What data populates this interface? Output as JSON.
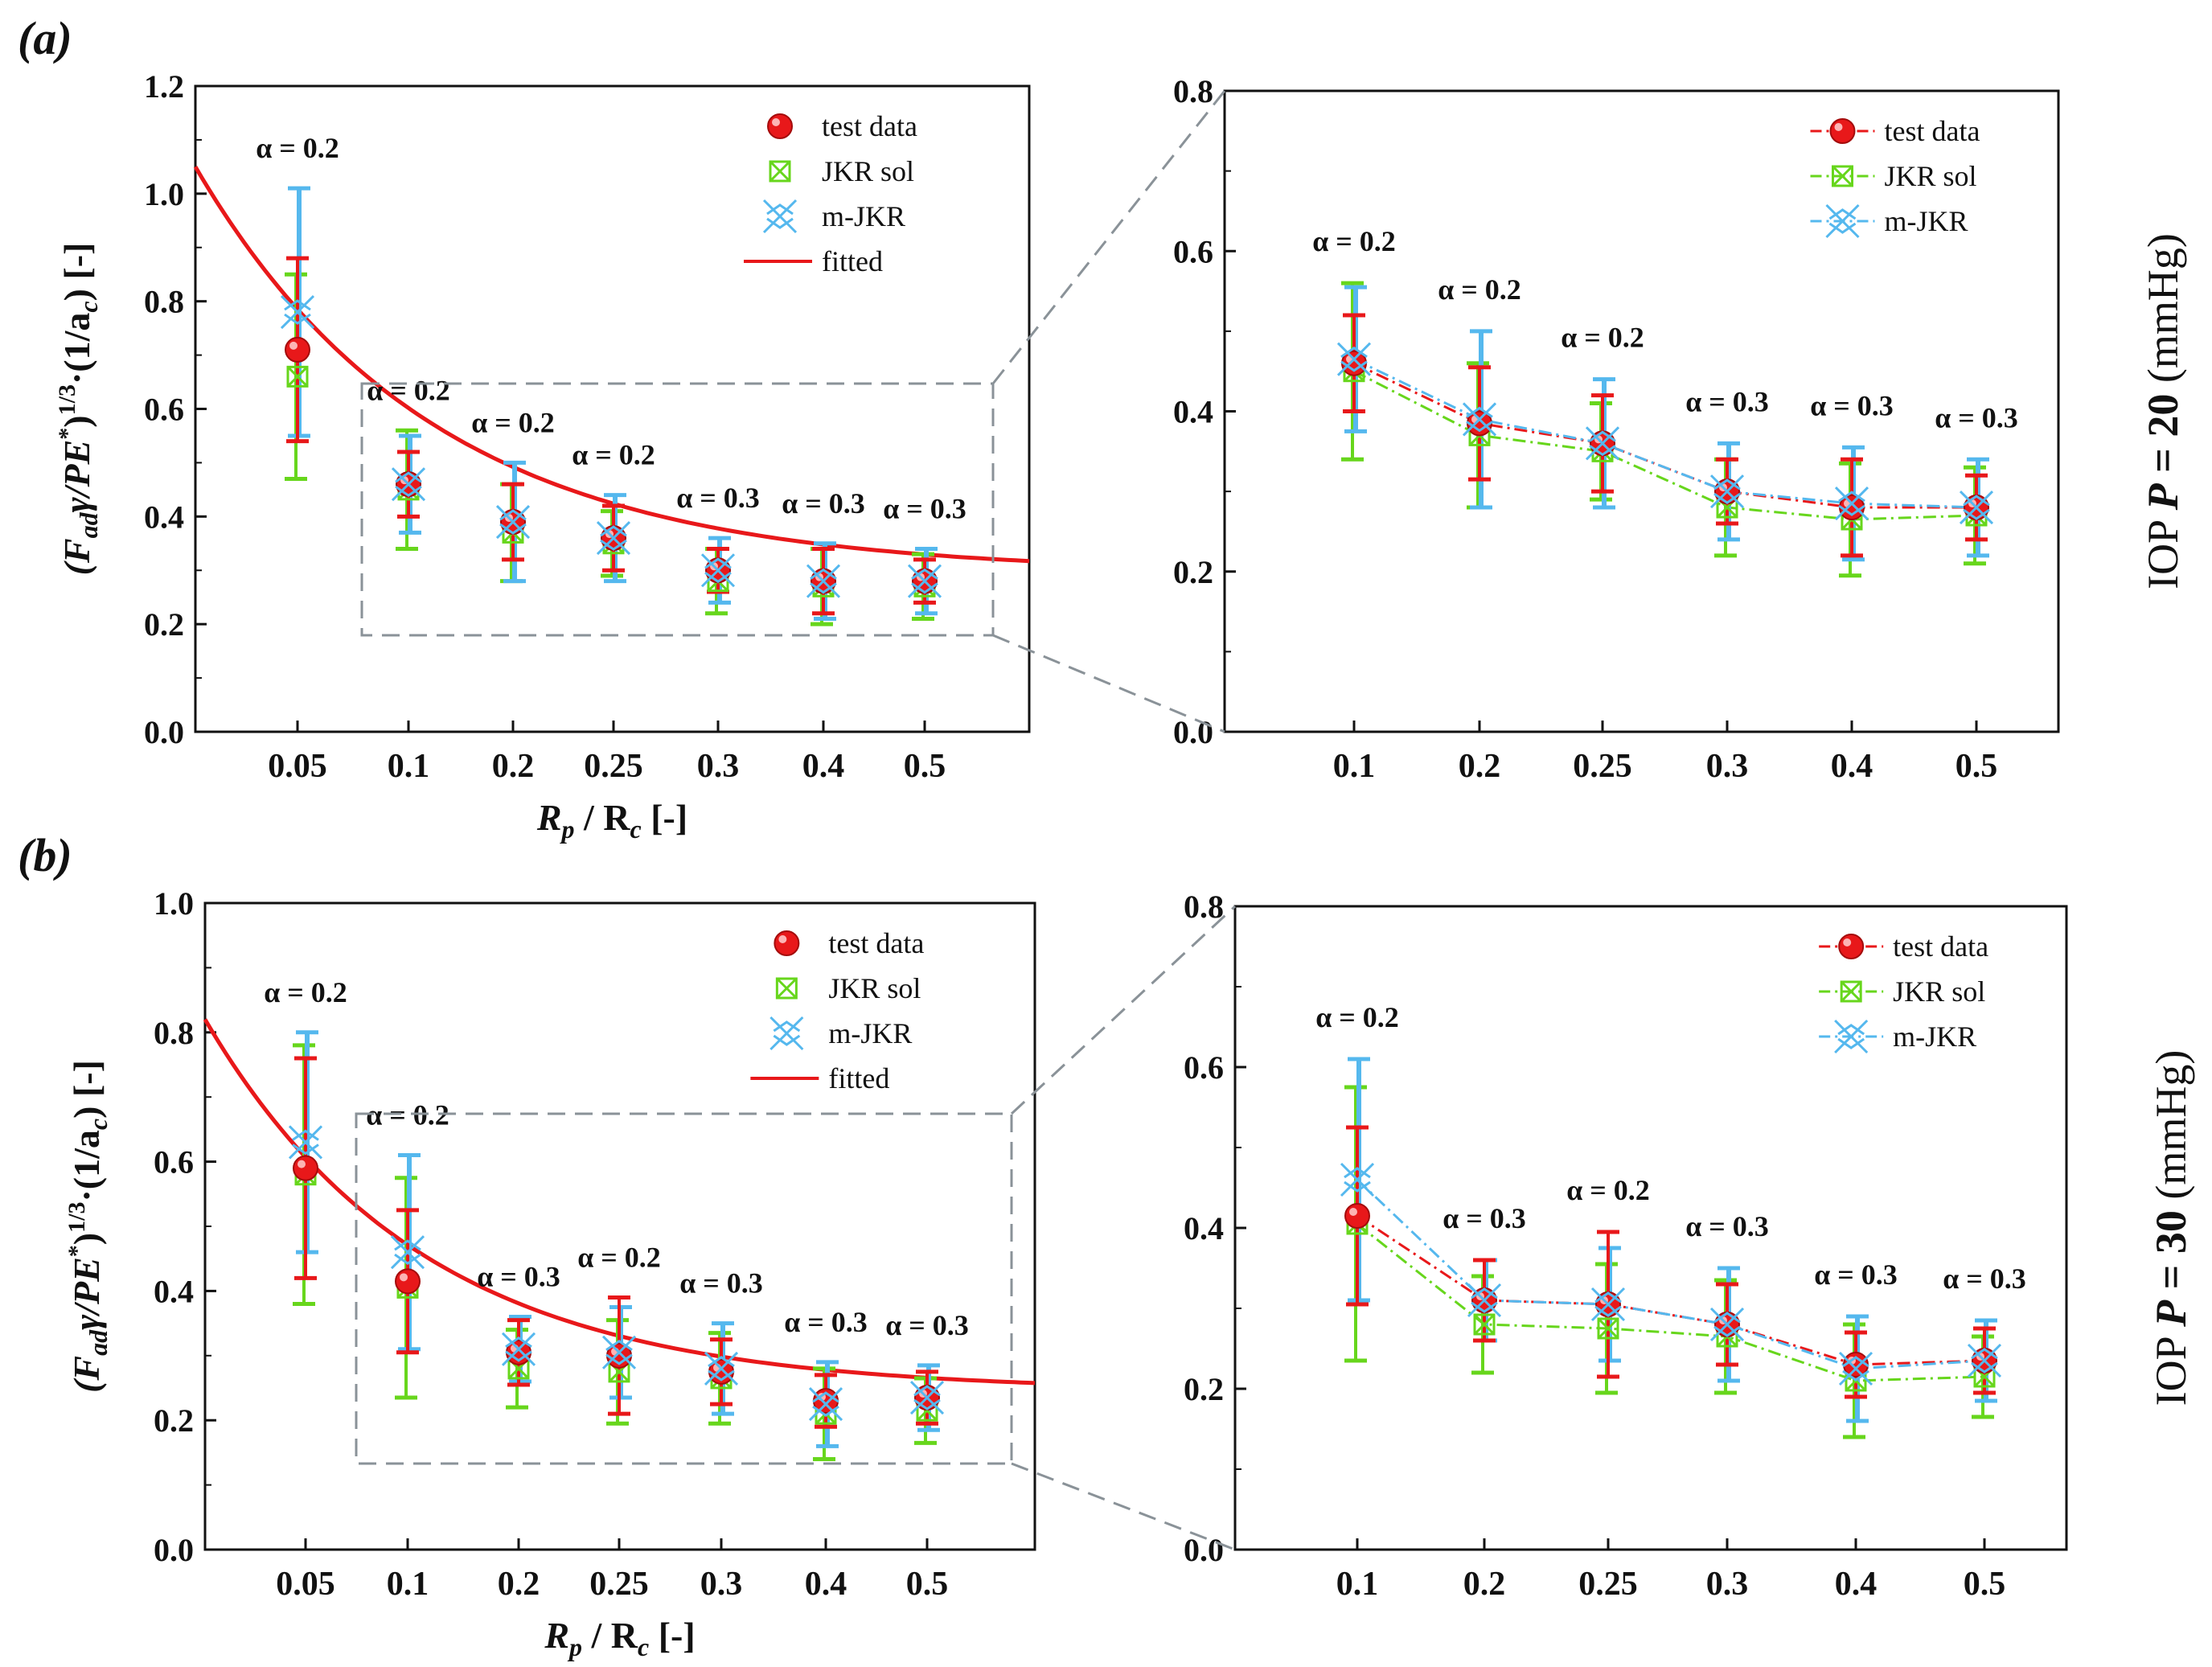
{
  "chart_data": [
    {
      "id": "a-main",
      "panel_label": "(a)",
      "type": "scatter",
      "title": "",
      "ylabel": "(F_ad γ/PE*)^1/3·(1/a_c) [-]",
      "ylabel_parts": [
        "(F",
        "ad",
        "γ/PE",
        "*",
        ")",
        "1/3",
        "·(1/a",
        "c",
        ") [-]"
      ],
      "xlabel_parts": [
        "R",
        "p",
        " / R",
        "c",
        " [-]"
      ],
      "categories": [
        "0.05",
        "0.1",
        "0.2",
        "0.25",
        "0.3",
        "0.4",
        "0.5"
      ],
      "ylim": [
        0,
        1.2
      ],
      "yticks": [
        "0.0",
        "0.2",
        "0.4",
        "0.6",
        "0.8",
        "1.0",
        "1.2"
      ],
      "annotations": [
        "α = 0.2",
        "α = 0.2",
        "α = 0.2",
        "α = 0.2",
        "α = 0.3",
        "α = 0.3",
        "α = 0.3"
      ],
      "series": [
        {
          "name": "test data",
          "color": "#e8181a",
          "marker": "ball",
          "values": [
            0.71,
            0.46,
            0.39,
            0.36,
            0.3,
            0.28,
            0.28
          ],
          "err": [
            0.17,
            0.06,
            0.07,
            0.06,
            0.04,
            0.06,
            0.04
          ]
        },
        {
          "name": "JKR sol",
          "color": "#67d61c",
          "marker": "boxx",
          "values": [
            0.66,
            0.45,
            0.37,
            0.35,
            0.28,
            0.27,
            0.27
          ],
          "err": [
            0.19,
            0.11,
            0.09,
            0.06,
            0.06,
            0.07,
            0.06
          ]
        },
        {
          "name": "m-JKR",
          "color": "#55b8ee",
          "marker": "star",
          "values": [
            0.78,
            0.46,
            0.39,
            0.36,
            0.3,
            0.28,
            0.28
          ],
          "err": [
            0.23,
            0.09,
            0.11,
            0.08,
            0.06,
            0.07,
            0.06
          ]
        }
      ],
      "fitted": {
        "name": "fitted",
        "color": "#e8181a",
        "curve": {
          "a": 0.755,
          "b": 1.7,
          "c": 0.295
        }
      },
      "legend_position": "top-right"
    },
    {
      "id": "a-zoom",
      "type": "line",
      "title": "",
      "categories": [
        "0.1",
        "0.2",
        "0.25",
        "0.3",
        "0.4",
        "0.5"
      ],
      "ylim": [
        0,
        0.8
      ],
      "yticks": [
        "0.0",
        "0.2",
        "0.4",
        "0.6",
        "0.8"
      ],
      "annotations": [
        "α = 0.2",
        "α = 0.2",
        "α = 0.2",
        "α = 0.3",
        "α = 0.3",
        "α = 0.3"
      ],
      "side_label_parts": [
        "IOP ",
        "P",
        " = 20",
        " (mmHg)"
      ],
      "series": [
        {
          "name": "test data",
          "color": "#e8181a",
          "marker": "ball",
          "values": [
            0.46,
            0.385,
            0.36,
            0.3,
            0.28,
            0.28
          ],
          "err": [
            0.06,
            0.07,
            0.06,
            0.04,
            0.06,
            0.04
          ]
        },
        {
          "name": "JKR sol",
          "color": "#67d61c",
          "marker": "boxx",
          "values": [
            0.45,
            0.37,
            0.35,
            0.28,
            0.265,
            0.27
          ],
          "err": [
            0.11,
            0.09,
            0.06,
            0.06,
            0.07,
            0.06
          ]
        },
        {
          "name": "m-JKR",
          "color": "#55b8ee",
          "marker": "star",
          "values": [
            0.465,
            0.39,
            0.36,
            0.3,
            0.285,
            0.28
          ],
          "err": [
            0.09,
            0.11,
            0.08,
            0.06,
            0.07,
            0.06
          ]
        }
      ],
      "legend_position": "top-right"
    },
    {
      "id": "b-main",
      "panel_label": "(b)",
      "type": "scatter",
      "title": "",
      "ylabel": "(F_ad γ/PE*)^1/3·(1/a_c) [-]",
      "ylabel_parts": [
        "(F",
        "ad",
        "γ/PE",
        "*",
        ")",
        "1/3",
        "·(1/a",
        "c",
        ") [-]"
      ],
      "xlabel_parts": [
        "R",
        "p",
        " / R",
        "c",
        " [-]"
      ],
      "categories": [
        "0.05",
        "0.1",
        "0.2",
        "0.25",
        "0.3",
        "0.4",
        "0.5"
      ],
      "ylim": [
        0,
        1.0
      ],
      "yticks": [
        "0.0",
        "0.2",
        "0.4",
        "0.6",
        "0.8",
        "1.0"
      ],
      "annotations": [
        "α = 0.2",
        "α = 0.2",
        "α = 0.3",
        "α = 0.2",
        "α = 0.3",
        "α = 0.3",
        "α = 0.3"
      ],
      "series": [
        {
          "name": "test data",
          "color": "#e8181a",
          "marker": "ball",
          "values": [
            0.59,
            0.415,
            0.305,
            0.3,
            0.275,
            0.23,
            0.235
          ],
          "err": [
            0.17,
            0.11,
            0.05,
            0.09,
            0.05,
            0.04,
            0.04
          ]
        },
        {
          "name": "JKR sol",
          "color": "#67d61c",
          "marker": "boxx",
          "values": [
            0.58,
            0.405,
            0.28,
            0.275,
            0.265,
            0.21,
            0.215
          ],
          "err": [
            0.2,
            0.17,
            0.06,
            0.08,
            0.07,
            0.07,
            0.05
          ]
        },
        {
          "name": "m-JKR",
          "color": "#55b8ee",
          "marker": "star",
          "values": [
            0.63,
            0.46,
            0.31,
            0.305,
            0.28,
            0.225,
            0.235
          ],
          "err": [
            0.17,
            0.15,
            0.05,
            0.07,
            0.07,
            0.065,
            0.05
          ]
        }
      ],
      "fitted": {
        "name": "fitted",
        "color": "#e8181a",
        "curve": {
          "a": 0.575,
          "b": 1.85,
          "c": 0.245
        }
      },
      "legend_position": "top-right"
    },
    {
      "id": "b-zoom",
      "type": "line",
      "title": "",
      "categories": [
        "0.1",
        "0.2",
        "0.25",
        "0.3",
        "0.4",
        "0.5"
      ],
      "ylim": [
        0,
        0.8
      ],
      "yticks": [
        "0.0",
        "0.2",
        "0.4",
        "0.6",
        "0.8"
      ],
      "annotations": [
        "α = 0.2",
        "α = 0.3",
        "α = 0.2",
        "α = 0.3",
        "α = 0.3",
        "α = 0.3"
      ],
      "side_label_parts": [
        "IOP ",
        "P",
        " = 30",
        " (mmHg)"
      ],
      "series": [
        {
          "name": "test data",
          "color": "#e8181a",
          "marker": "ball",
          "values": [
            0.415,
            0.31,
            0.305,
            0.28,
            0.23,
            0.235
          ],
          "err": [
            0.11,
            0.05,
            0.09,
            0.05,
            0.04,
            0.04
          ]
        },
        {
          "name": "JKR sol",
          "color": "#67d61c",
          "marker": "boxx",
          "values": [
            0.405,
            0.28,
            0.275,
            0.265,
            0.21,
            0.215
          ],
          "err": [
            0.17,
            0.06,
            0.08,
            0.07,
            0.07,
            0.05
          ]
        },
        {
          "name": "m-JKR",
          "color": "#55b8ee",
          "marker": "star",
          "values": [
            0.46,
            0.31,
            0.305,
            0.28,
            0.225,
            0.235
          ],
          "err": [
            0.15,
            0.05,
            0.07,
            0.07,
            0.065,
            0.05
          ]
        }
      ],
      "legend_position": "top-right"
    }
  ]
}
